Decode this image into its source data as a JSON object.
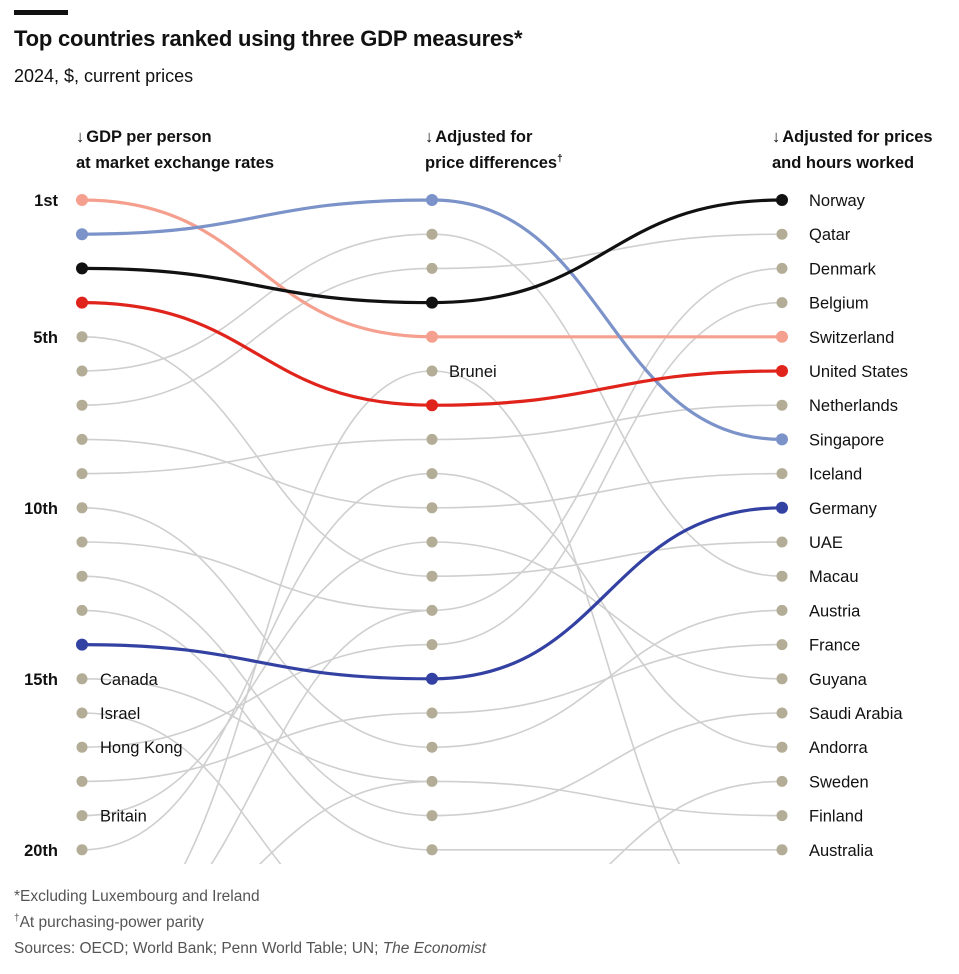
{
  "header": {
    "title": "Top countries ranked using three GDP measures*",
    "subtitle": "2024, $, current prices"
  },
  "columns": [
    {
      "arrow": "↓",
      "line1": "GDP per person",
      "line2": "at market exchange rates",
      "sup": ""
    },
    {
      "arrow": "↓",
      "line1": "Adjusted for",
      "line2": "price differences",
      "sup": "†"
    },
    {
      "arrow": "↓",
      "line1": "Adjusted for prices",
      "line2": "and hours worked",
      "sup": ""
    }
  ],
  "footnotes": {
    "note1": "*Excluding Luxembourg and Ireland",
    "note2_mark": "†",
    "note2": "At purchasing-power parity",
    "sources_prefix": "Sources: OECD; World Bank; Penn World Table; UN; ",
    "sources_italic": "The Economist"
  },
  "chart_data": {
    "type": "bump",
    "title": "Top countries ranked using three GDP measures*",
    "subtitle": "2024, $, current prices",
    "stages": [
      "GDP per person at market exchange rates",
      "Adjusted for price differences",
      "Adjusted for prices and hours worked"
    ],
    "rank_labels": [
      {
        "rank": 1,
        "label": "1st"
      },
      {
        "rank": 5,
        "label": "5th"
      },
      {
        "rank": 10,
        "label": "10th"
      },
      {
        "rank": 15,
        "label": "15th"
      },
      {
        "rank": 20,
        "label": "20th"
      }
    ],
    "rank_range": [
      1,
      20
    ],
    "highlight_colors": {
      "Switzerland": "#f5a08f",
      "Singapore": "#7b93c9",
      "Norway": "#111111",
      "United States": "#e0241b",
      "Germany": "#3341a3"
    },
    "background_color": "#cfcfcf",
    "dot_color": "#b3ad97",
    "series": [
      {
        "name": "Switzerland",
        "ranks": [
          1,
          5,
          5
        ],
        "highlight": true
      },
      {
        "name": "Singapore",
        "ranks": [
          2,
          1,
          8
        ],
        "highlight": true
      },
      {
        "name": "Norway",
        "ranks": [
          3,
          4,
          1
        ],
        "highlight": true
      },
      {
        "name": "United States",
        "ranks": [
          4,
          7,
          6
        ],
        "highlight": true
      },
      {
        "name": "Germany",
        "ranks": [
          14,
          15,
          10
        ],
        "highlight": true
      }
    ],
    "right_labels": [
      "Norway",
      "Qatar",
      "Denmark",
      "Belgium",
      "Switzerland",
      "United States",
      "Netherlands",
      "Singapore",
      "Iceland",
      "Germany",
      "UAE",
      "Macau",
      "Austria",
      "France",
      "Guyana",
      "Saudi Arabia",
      "Andorra",
      "Sweden",
      "Finland",
      "Australia"
    ],
    "left_labels": [
      {
        "rank": 15,
        "name": "Canada"
      },
      {
        "rank": 16,
        "name": "Israel"
      },
      {
        "rank": 17,
        "name": "Hong Kong"
      },
      {
        "rank": 19,
        "name": "Britain"
      }
    ],
    "middle_labels": [
      {
        "rank": 6,
        "name": "Brunei"
      }
    ],
    "background_links": [
      {
        "from_stage": 0,
        "from_rank": 5,
        "to_stage": 1,
        "to_rank": 12
      },
      {
        "from_stage": 0,
        "from_rank": 6,
        "to_stage": 1,
        "to_rank": 2
      },
      {
        "from_stage": 0,
        "from_rank": 7,
        "to_stage": 1,
        "to_rank": 3
      },
      {
        "from_stage": 0,
        "from_rank": 8,
        "to_stage": 1,
        "to_rank": 10
      },
      {
        "from_stage": 0,
        "from_rank": 9,
        "to_stage": 1,
        "to_rank": 8
      },
      {
        "from_stage": 0,
        "from_rank": 10,
        "to_stage": 1,
        "to_rank": 17
      },
      {
        "from_stage": 0,
        "from_rank": 11,
        "to_stage": 1,
        "to_rank": 13
      },
      {
        "from_stage": 0,
        "from_rank": 12,
        "to_stage": 1,
        "to_rank": 19
      },
      {
        "from_stage": 0,
        "from_rank": 13,
        "to_stage": 1,
        "to_rank": 20
      },
      {
        "from_stage": 0,
        "from_rank": 15,
        "to_stage": 1,
        "to_rank": 18
      },
      {
        "from_stage": 0,
        "from_rank": 16,
        "to_stage": 1,
        "to_rank": 23
      },
      {
        "from_stage": 0,
        "from_rank": 17,
        "to_stage": 1,
        "to_rank": 14
      },
      {
        "from_stage": 0,
        "from_rank": 18,
        "to_stage": 1,
        "to_rank": 16
      },
      {
        "from_stage": 0,
        "from_rank": 19,
        "to_stage": 1,
        "to_rank": 11
      },
      {
        "from_stage": 0,
        "from_rank": 20,
        "to_stage": 1,
        "to_rank": 9
      },
      {
        "from_stage": 0,
        "from_rank": 23,
        "to_stage": 1,
        "to_rank": 6
      },
      {
        "from_stage": 0,
        "from_rank": 23,
        "to_stage": 1,
        "to_rank": 18
      },
      {
        "from_stage": 0,
        "from_rank": 23,
        "to_stage": 1,
        "to_rank": 13
      },
      {
        "from_stage": 1,
        "from_rank": 2,
        "to_stage": 2,
        "to_rank": 12
      },
      {
        "from_stage": 1,
        "from_rank": 3,
        "to_stage": 2,
        "to_rank": 2
      },
      {
        "from_stage": 1,
        "from_rank": 6,
        "to_stage": 2,
        "to_rank": 23
      },
      {
        "from_stage": 1,
        "from_rank": 8,
        "to_stage": 2,
        "to_rank": 7
      },
      {
        "from_stage": 1,
        "from_rank": 9,
        "to_stage": 2,
        "to_rank": 17
      },
      {
        "from_stage": 1,
        "from_rank": 10,
        "to_stage": 2,
        "to_rank": 9
      },
      {
        "from_stage": 1,
        "from_rank": 11,
        "to_stage": 2,
        "to_rank": 15
      },
      {
        "from_stage": 1,
        "from_rank": 12,
        "to_stage": 2,
        "to_rank": 11
      },
      {
        "from_stage": 1,
        "from_rank": 13,
        "to_stage": 2,
        "to_rank": 3
      },
      {
        "from_stage": 1,
        "from_rank": 14,
        "to_stage": 2,
        "to_rank": 4
      },
      {
        "from_stage": 1,
        "from_rank": 16,
        "to_stage": 2,
        "to_rank": 14
      },
      {
        "from_stage": 1,
        "from_rank": 17,
        "to_stage": 2,
        "to_rank": 13
      },
      {
        "from_stage": 1,
        "from_rank": 18,
        "to_stage": 2,
        "to_rank": 19
      },
      {
        "from_stage": 1,
        "from_rank": 19,
        "to_stage": 2,
        "to_rank": 16
      },
      {
        "from_stage": 1,
        "from_rank": 20,
        "to_stage": 2,
        "to_rank": 20
      },
      {
        "from_stage": 1,
        "from_rank": 23,
        "to_stage": 2,
        "to_rank": 18
      },
      {
        "from_stage": 1,
        "from_rank": 23,
        "to_stage": 2,
        "to_rank": 21
      }
    ]
  }
}
